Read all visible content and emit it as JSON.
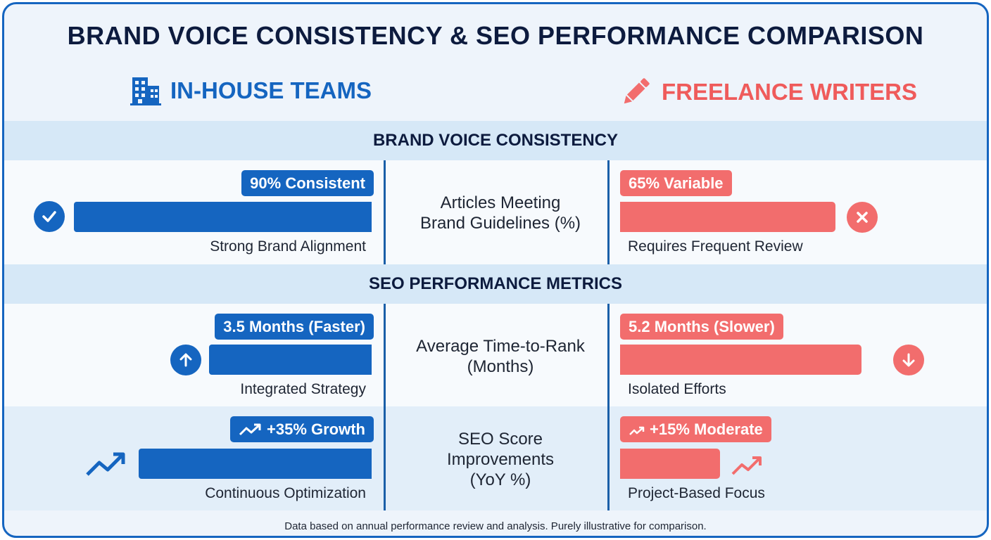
{
  "title": "BRAND VOICE CONSISTENCY & SEO PERFORMANCE COMPARISON",
  "teams": {
    "left": {
      "label": "IN-HOUSE TEAMS",
      "icon": "building-icon",
      "color": "#1565c0"
    },
    "right": {
      "label": "FREELANCE WRITERS",
      "icon": "pencil-icon",
      "color": "#f26d6d"
    }
  },
  "sections": {
    "brand": "BRAND VOICE CONSISTENCY",
    "seo": "SEO PERFORMANCE METRICS"
  },
  "chart_data": {
    "type": "bar",
    "layout": "diverging comparison",
    "series": [
      {
        "name": "IN-HOUSE TEAMS",
        "color": "#1565c0"
      },
      {
        "name": "FREELANCE WRITERS",
        "color": "#f26d6d"
      }
    ],
    "rows": [
      {
        "metric_lines": [
          "Articles Meeting",
          "Brand Guidelines (%)"
        ],
        "left": {
          "value": 90,
          "badge": "90% Consistent",
          "note": "Strong Brand Alignment",
          "icon": "check-circle-icon"
        },
        "right": {
          "value": 65,
          "badge": "65% Variable",
          "note": "Requires Frequent Review",
          "icon": "x-circle-icon"
        }
      },
      {
        "metric_lines": [
          "Average Time-to-Rank",
          "(Months)"
        ],
        "left": {
          "value": 3.5,
          "badge": "3.5 Months (Faster)",
          "note": "Integrated Strategy",
          "icon": "arrow-up-circle-icon"
        },
        "right": {
          "value": 5.2,
          "badge": "5.2 Months (Slower)",
          "note": "Isolated Efforts",
          "icon": "arrow-down-circle-icon"
        }
      },
      {
        "metric_lines": [
          "SEO Score",
          "Improvements",
          "(YoY %)"
        ],
        "left": {
          "value": 35,
          "badge": "+35% Growth",
          "note": "Continuous Optimization",
          "icon": "trend-up-icon"
        },
        "right": {
          "value": 15,
          "badge": "+15% Moderate",
          "note": "Project-Based Focus",
          "icon": "trend-up-icon"
        }
      }
    ]
  },
  "footnote": "Data based on annual performance review and analysis. Purely illustrative for comparison."
}
